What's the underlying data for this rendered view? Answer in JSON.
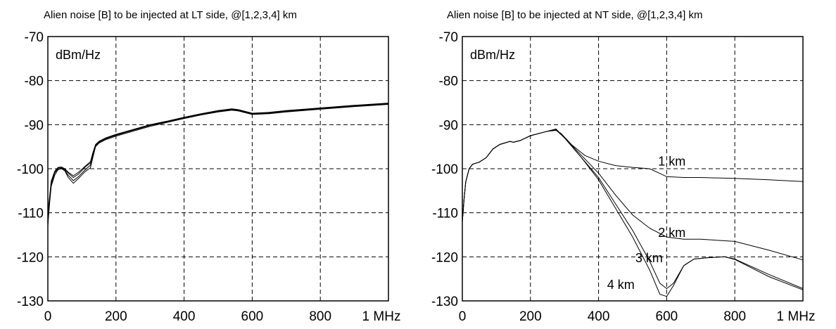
{
  "chart_data": [
    {
      "type": "line",
      "title": "Alien noise [B] to be injected at LT side, @[1,2,3,4] km",
      "unit_label": "dBm/Hz",
      "x_ticks": [
        "0",
        "200",
        "400",
        "600",
        "800",
        "1 MHz"
      ],
      "y_ticks": [
        "-70",
        "-80",
        "-90",
        "-100",
        "-110",
        "-120",
        "-130"
      ],
      "xlim": [
        0,
        1000
      ],
      "ylim": [
        -130,
        -70
      ],
      "grid": true,
      "annotations": [],
      "series": [
        {
          "values": [
            [
              0,
              -113
            ],
            [
              5,
              -108
            ],
            [
              10,
              -104
            ],
            [
              20,
              -101.5
            ],
            [
              30,
              -100.2
            ],
            [
              40,
              -100
            ],
            [
              50,
              -100.5
            ],
            [
              60,
              -102
            ],
            [
              75,
              -103.3
            ],
            [
              90,
              -102.2
            ],
            [
              110,
              -100.6
            ],
            [
              125,
              -99.8
            ],
            [
              132,
              -97.5
            ],
            [
              140,
              -95
            ],
            [
              150,
              -94.2
            ],
            [
              170,
              -93.4
            ],
            [
              200,
              -92.6
            ],
            [
              250,
              -91.5
            ],
            [
              300,
              -90.4
            ],
            [
              350,
              -89.5
            ],
            [
              400,
              -88.6
            ],
            [
              450,
              -87.8
            ],
            [
              500,
              -87.1
            ],
            [
              540,
              -86.7
            ],
            [
              560,
              -86.9
            ],
            [
              600,
              -87.7
            ],
            [
              650,
              -87.5
            ],
            [
              700,
              -87.1
            ],
            [
              800,
              -86.5
            ],
            [
              900,
              -85.9
            ],
            [
              1000,
              -85.4
            ]
          ]
        },
        {
          "values": [
            [
              0,
              -112
            ],
            [
              5,
              -107.5
            ],
            [
              10,
              -103.5
            ],
            [
              20,
              -101
            ],
            [
              30,
              -100
            ],
            [
              40,
              -99.9
            ],
            [
              50,
              -100.4
            ],
            [
              60,
              -101.5
            ],
            [
              75,
              -102.7
            ],
            [
              90,
              -101.8
            ],
            [
              110,
              -100.2
            ],
            [
              125,
              -99.2
            ],
            [
              132,
              -97
            ],
            [
              140,
              -94.8
            ],
            [
              150,
              -94
            ],
            [
              170,
              -93.2
            ],
            [
              200,
              -92.4
            ],
            [
              250,
              -91.3
            ],
            [
              300,
              -90.2
            ],
            [
              350,
              -89.4
            ],
            [
              400,
              -88.5
            ],
            [
              450,
              -87.7
            ],
            [
              500,
              -87
            ],
            [
              540,
              -86.6
            ],
            [
              560,
              -86.8
            ],
            [
              600,
              -87.6
            ],
            [
              650,
              -87.4
            ],
            [
              700,
              -87
            ],
            [
              800,
              -86.4
            ],
            [
              900,
              -85.8
            ],
            [
              1000,
              -85.3
            ]
          ]
        },
        {
          "values": [
            [
              0,
              -111
            ],
            [
              5,
              -107
            ],
            [
              10,
              -103
            ],
            [
              20,
              -100.8
            ],
            [
              30,
              -99.8
            ],
            [
              40,
              -99.7
            ],
            [
              50,
              -100.2
            ],
            [
              60,
              -101
            ],
            [
              75,
              -102
            ],
            [
              90,
              -101.2
            ],
            [
              110,
              -99.6
            ],
            [
              125,
              -98.7
            ],
            [
              132,
              -96.6
            ],
            [
              140,
              -94.6
            ],
            [
              150,
              -93.9
            ],
            [
              170,
              -93.1
            ],
            [
              200,
              -92.3
            ],
            [
              250,
              -91.2
            ],
            [
              300,
              -90.1
            ],
            [
              350,
              -89.3
            ],
            [
              400,
              -88.4
            ],
            [
              450,
              -87.6
            ],
            [
              500,
              -86.9
            ],
            [
              540,
              -86.5
            ],
            [
              560,
              -86.7
            ],
            [
              600,
              -87.5
            ],
            [
              650,
              -87.3
            ],
            [
              700,
              -86.9
            ],
            [
              800,
              -86.3
            ],
            [
              900,
              -85.7
            ],
            [
              1000,
              -85.2
            ]
          ]
        },
        {
          "values": [
            [
              0,
              -110
            ],
            [
              5,
              -106.5
            ],
            [
              10,
              -102.8
            ],
            [
              20,
              -100.6
            ],
            [
              30,
              -99.7
            ],
            [
              40,
              -99.6
            ],
            [
              50,
              -100
            ],
            [
              60,
              -100.8
            ],
            [
              75,
              -101.6
            ],
            [
              90,
              -100.8
            ],
            [
              110,
              -99.4
            ],
            [
              125,
              -98.4
            ],
            [
              132,
              -96.4
            ],
            [
              140,
              -94.5
            ],
            [
              150,
              -93.8
            ],
            [
              170,
              -93
            ],
            [
              200,
              -92.2
            ],
            [
              250,
              -91.1
            ],
            [
              300,
              -90
            ],
            [
              350,
              -89.2
            ],
            [
              400,
              -88.3
            ],
            [
              450,
              -87.5
            ],
            [
              500,
              -86.8
            ],
            [
              540,
              -86.4
            ],
            [
              560,
              -86.6
            ],
            [
              600,
              -87.4
            ],
            [
              650,
              -87.2
            ],
            [
              700,
              -86.8
            ],
            [
              800,
              -86.2
            ],
            [
              900,
              -85.6
            ],
            [
              1000,
              -85.1
            ]
          ]
        }
      ]
    },
    {
      "type": "line",
      "title": "Alien noise [B] to be injected at NT side, @[1,2,3,4] km",
      "unit_label": "dBm/Hz",
      "x_ticks": [
        "0",
        "200",
        "400",
        "600",
        "800",
        "1 MHz"
      ],
      "y_ticks": [
        "-70",
        "-80",
        "-90",
        "-100",
        "-110",
        "-120",
        "-130"
      ],
      "xlim": [
        0,
        1000
      ],
      "ylim": [
        -130,
        -70
      ],
      "grid": true,
      "annotations": [
        {
          "text": "1 km",
          "x": 575,
          "y": -98.3
        },
        {
          "text": "2 km",
          "x": 575,
          "y": -114.5
        },
        {
          "text": "3 km",
          "x": 508,
          "y": -120.3
        },
        {
          "text": "4 km",
          "x": 425,
          "y": -126.3
        }
      ],
      "series": [
        {
          "name": "1 km",
          "values": [
            [
              0,
              -112
            ],
            [
              5,
              -107
            ],
            [
              10,
              -103
            ],
            [
              20,
              -100
            ],
            [
              30,
              -99
            ],
            [
              50,
              -98.5
            ],
            [
              70,
              -97.5
            ],
            [
              90,
              -95.5
            ],
            [
              110,
              -94.5
            ],
            [
              140,
              -93.8
            ],
            [
              150,
              -94
            ],
            [
              170,
              -93.6
            ],
            [
              200,
              -92.5
            ],
            [
              250,
              -91.5
            ],
            [
              275,
              -91.3
            ],
            [
              290,
              -92
            ],
            [
              320,
              -94.5
            ],
            [
              360,
              -97
            ],
            [
              400,
              -98.3
            ],
            [
              450,
              -99.3
            ],
            [
              500,
              -99.7
            ],
            [
              550,
              -100
            ],
            [
              600,
              -101.8
            ],
            [
              650,
              -102
            ],
            [
              700,
              -102
            ],
            [
              800,
              -102.2
            ],
            [
              900,
              -102.5
            ],
            [
              1000,
              -102.9
            ]
          ]
        },
        {
          "name": "2 km",
          "values": [
            [
              0,
              -112
            ],
            [
              5,
              -107
            ],
            [
              10,
              -103
            ],
            [
              20,
              -100
            ],
            [
              30,
              -99
            ],
            [
              50,
              -98.5
            ],
            [
              70,
              -97.5
            ],
            [
              90,
              -95.5
            ],
            [
              110,
              -94.5
            ],
            [
              140,
              -93.8
            ],
            [
              150,
              -94
            ],
            [
              170,
              -93.6
            ],
            [
              200,
              -92.5
            ],
            [
              250,
              -91.5
            ],
            [
              275,
              -91.2
            ],
            [
              300,
              -93
            ],
            [
              350,
              -97
            ],
            [
              400,
              -101
            ],
            [
              450,
              -106
            ],
            [
              500,
              -110.5
            ],
            [
              550,
              -113.5
            ],
            [
              600,
              -115.5
            ],
            [
              650,
              -116
            ],
            [
              700,
              -116
            ],
            [
              800,
              -116.5
            ],
            [
              900,
              -118.5
            ],
            [
              1000,
              -120.7
            ]
          ]
        },
        {
          "name": "3 km",
          "values": [
            [
              0,
              -112
            ],
            [
              5,
              -107
            ],
            [
              10,
              -103
            ],
            [
              20,
              -100
            ],
            [
              30,
              -99
            ],
            [
              50,
              -98.5
            ],
            [
              70,
              -97.5
            ],
            [
              90,
              -95.5
            ],
            [
              110,
              -94.5
            ],
            [
              140,
              -93.8
            ],
            [
              150,
              -94
            ],
            [
              170,
              -93.6
            ],
            [
              200,
              -92.5
            ],
            [
              250,
              -91.5
            ],
            [
              275,
              -91
            ],
            [
              300,
              -93
            ],
            [
              350,
              -97.5
            ],
            [
              400,
              -102
            ],
            [
              450,
              -108
            ],
            [
              500,
              -114
            ],
            [
              550,
              -121
            ],
            [
              580,
              -126
            ],
            [
              600,
              -127.2
            ],
            [
              620,
              -126
            ],
            [
              650,
              -122
            ],
            [
              680,
              -120.5
            ],
            [
              720,
              -120.2
            ],
            [
              770,
              -120
            ],
            [
              800,
              -120.5
            ],
            [
              900,
              -124
            ],
            [
              1000,
              -127.2
            ]
          ]
        },
        {
          "name": "4 km",
          "values": [
            [
              0,
              -112
            ],
            [
              5,
              -107
            ],
            [
              10,
              -103
            ],
            [
              20,
              -100
            ],
            [
              30,
              -99
            ],
            [
              50,
              -98.5
            ],
            [
              70,
              -97.5
            ],
            [
              90,
              -95.5
            ],
            [
              110,
              -94.5
            ],
            [
              140,
              -93.8
            ],
            [
              150,
              -94
            ],
            [
              170,
              -93.6
            ],
            [
              200,
              -92.5
            ],
            [
              250,
              -91.5
            ],
            [
              275,
              -91
            ],
            [
              300,
              -93
            ],
            [
              350,
              -97.5
            ],
            [
              400,
              -102.5
            ],
            [
              450,
              -109
            ],
            [
              500,
              -115.5
            ],
            [
              550,
              -123
            ],
            [
              580,
              -128.5
            ],
            [
              600,
              -129
            ],
            [
              620,
              -126.5
            ],
            [
              650,
              -122
            ],
            [
              680,
              -120.5
            ],
            [
              720,
              -120.2
            ],
            [
              770,
              -120
            ],
            [
              800,
              -120.6
            ],
            [
              900,
              -124.5
            ],
            [
              1000,
              -127.5
            ]
          ]
        }
      ]
    }
  ]
}
